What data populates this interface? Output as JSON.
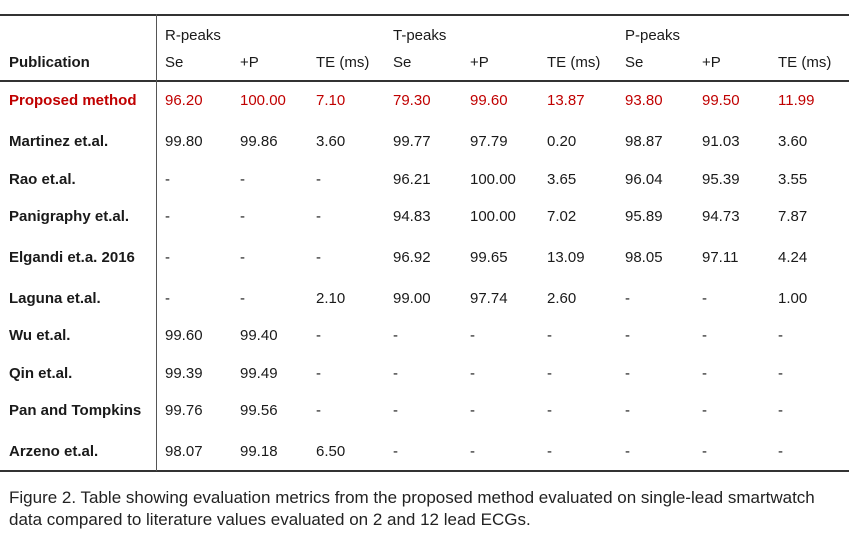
{
  "table": {
    "publication_header": "Publication",
    "groups": [
      "R-peaks",
      "T-peaks",
      "P-peaks"
    ],
    "subheaders": [
      "Se",
      "+P",
      "TE (ms)",
      "Se",
      "+P",
      "TE (ms)",
      "Se",
      "+P",
      "TE (ms)"
    ],
    "highlight_color": "#c00000",
    "rows": [
      {
        "name": "Proposed method",
        "values": [
          "96.20",
          "100.00",
          "7.10",
          "79.30",
          "99.60",
          "13.87",
          "93.80",
          "99.50",
          "11.99"
        ],
        "highlight": true
      },
      {
        "name": "Martinez et.al.",
        "values": [
          "99.80",
          "99.86",
          "3.60",
          "99.77",
          "97.79",
          "0.20",
          "98.87",
          "91.03",
          "3.60"
        ]
      },
      {
        "name": "Rao et.al.",
        "values": [
          "-",
          "-",
          "-",
          "96.21",
          "100.00",
          "3.65",
          "96.04",
          "95.39",
          "3.55"
        ]
      },
      {
        "name": "Panigraphy et.al.",
        "values": [
          "-",
          "-",
          "-",
          "94.83",
          "100.00",
          "7.02",
          "95.89",
          "94.73",
          "7.87"
        ]
      },
      {
        "name": "Elgandi et.a. 2016",
        "values": [
          "-",
          "-",
          "-",
          "96.92",
          "99.65",
          "13.09",
          "98.05",
          "97.11",
          "4.24"
        ]
      },
      {
        "name": "Laguna et.al.",
        "values": [
          "-",
          "-",
          "2.10",
          "99.00",
          "97.74",
          "2.60",
          "-",
          "-",
          "1.00"
        ]
      },
      {
        "name": "Wu et.al.",
        "values": [
          "99.60",
          "99.40",
          "-",
          "-",
          "-",
          "-",
          "-",
          "-",
          "-"
        ]
      },
      {
        "name": "Qin et.al.",
        "values": [
          "99.39",
          "99.49",
          "-",
          "-",
          "-",
          "-",
          "-",
          "-",
          "-"
        ]
      },
      {
        "name": "Pan and Tompkins",
        "values": [
          "99.76",
          "99.56",
          "-",
          "-",
          "-",
          "-",
          "-",
          "-",
          "-"
        ]
      },
      {
        "name": "Arzeno et.al.",
        "values": [
          "98.07",
          "99.18",
          "6.50",
          "-",
          "-",
          "-",
          "-",
          "-",
          "-"
        ]
      }
    ]
  },
  "caption": "Figure 2. Table showing evaluation metrics from the proposed method evaluated on single-lead smartwatch data compared to literature values evaluated on 2 and 12 lead ECGs."
}
